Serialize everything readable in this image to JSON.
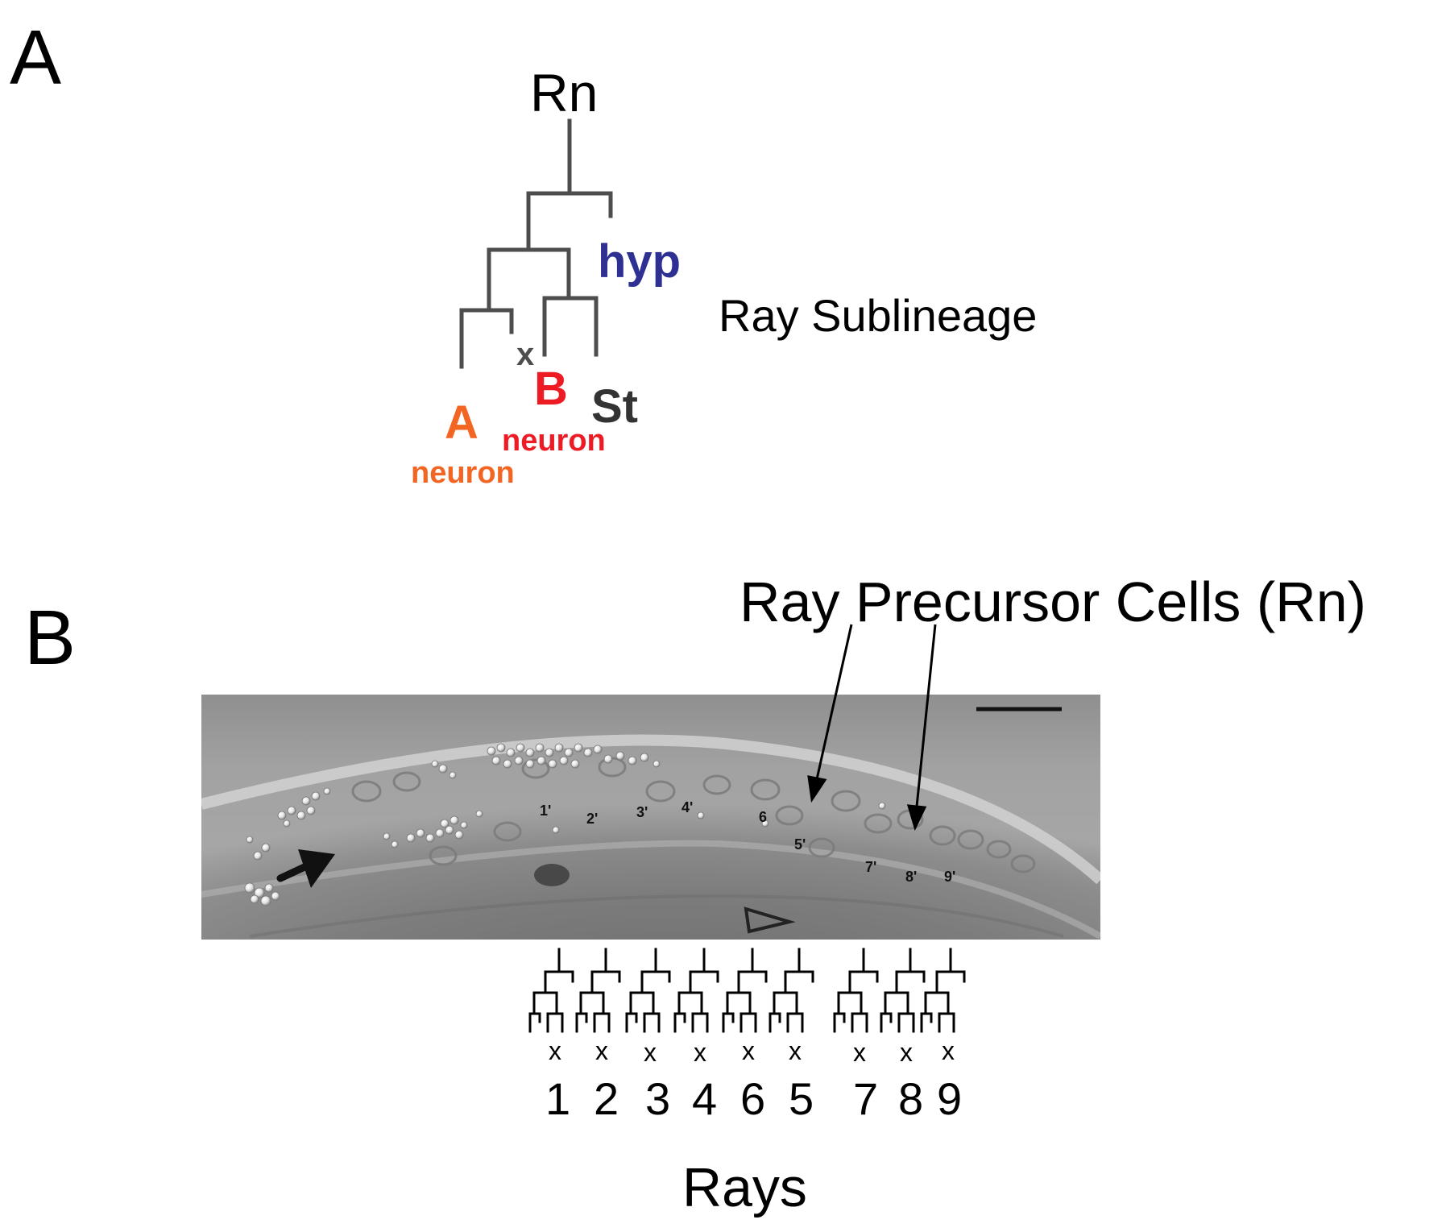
{
  "panel_a": {
    "letter": "A",
    "root_label": "Rn",
    "hyp_label": "hyp",
    "death_mark": "x",
    "cell_a": "A",
    "cell_a_type": "neuron",
    "cell_b": "B",
    "cell_b_type": "neuron",
    "cell_st": "St",
    "caption": "Ray Sublineage",
    "colors": {
      "lines": "#4d4d4d",
      "hyp": "#2e3192",
      "a": "#f26522",
      "b": "#ed1c24",
      "st": "#333333"
    }
  },
  "panel_b": {
    "letter": "B",
    "callout": "Ray Precursor Cells (Rn)",
    "micrograph_cell_labels": [
      "1'",
      "2'",
      "3'",
      "4'",
      "6",
      "5'",
      "7'",
      "8'",
      "9'"
    ],
    "tree_death_mark": "x",
    "ray_numbers": [
      "1",
      "2",
      "3",
      "4",
      "6",
      "5",
      "7",
      "8",
      "9"
    ],
    "axis_label": "Rays"
  }
}
